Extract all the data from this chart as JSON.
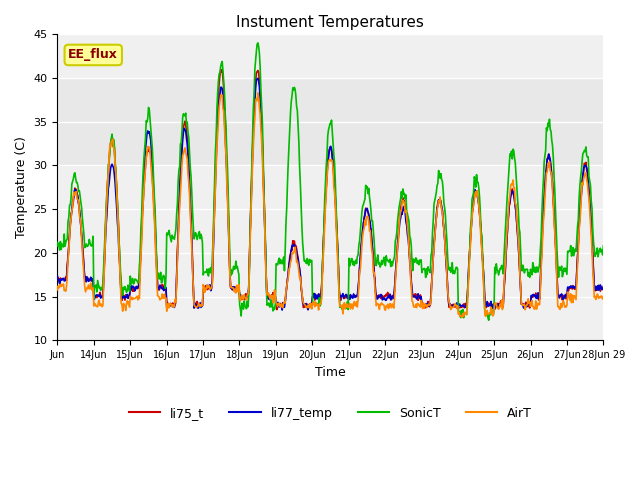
{
  "title": "Instument Temperatures",
  "xlabel": "Time",
  "ylabel": "Temperature (C)",
  "ylim": [
    10,
    45
  ],
  "xlim": [
    0,
    15
  ],
  "background_color": "#ffffff",
  "plot_bg_color": "#f0f0f0",
  "grid_color": "#ffffff",
  "shaded_band": [
    30,
    40
  ],
  "shaded_band_color": "#e8e8e8",
  "annotation_text": "EE_flux",
  "annotation_color": "#8b0000",
  "annotation_bg": "#ffff99",
  "annotation_border": "#cccc00",
  "lines": {
    "li75_t": {
      "color": "#cc0000",
      "lw": 1.2
    },
    "li77_temp": {
      "color": "#0000cc",
      "lw": 1.2
    },
    "SonicT": {
      "color": "#00bb00",
      "lw": 1.2
    },
    "AirT": {
      "color": "#ff8800",
      "lw": 1.2
    }
  },
  "xtick_positions": [
    0,
    1,
    2,
    3,
    4,
    5,
    6,
    7,
    8,
    9,
    10,
    11,
    12,
    13,
    14,
    15
  ],
  "xtick_labels": [
    "Jun",
    "14Jun",
    "15Jun",
    "16Jun",
    "17Jun",
    "18Jun",
    "19Jun",
    "20Jun",
    "21Jun",
    "22Jun",
    "23Jun",
    "24Jun",
    "25Jun",
    "26Jun",
    "27Jun",
    "28Jun 29"
  ],
  "ytick_labels": [
    10,
    15,
    20,
    25,
    30,
    35,
    40,
    45
  ]
}
